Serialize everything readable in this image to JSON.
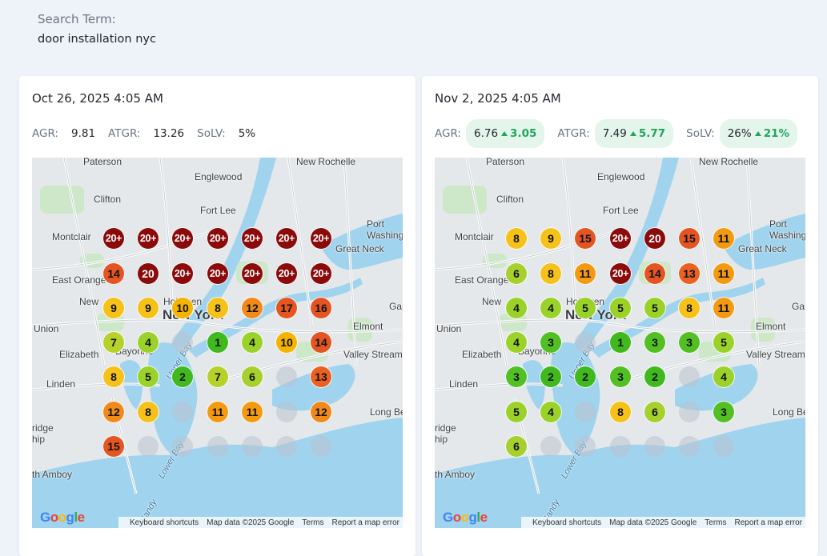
{
  "search": {
    "label": "Search Term:",
    "term": "door installation nyc"
  },
  "colors": {
    "g1": "#3fb91e",
    "g3": "#52c024",
    "g4": "#9ad22a",
    "g6": "#a6d02e",
    "y7": "#b6d12a",
    "y8": "#f6c21a",
    "y10": "#f4b400",
    "o11": "#f49a12",
    "o12": "#f28a1a",
    "o13": "#ec6020",
    "r15": "#e55522",
    "d20": "#8b0a0a"
  },
  "cards": [
    {
      "date": "Oct 26, 2025 4:05 AM",
      "metrics": [
        {
          "label": "AGR:",
          "value": "9.81",
          "change": ""
        },
        {
          "label": "ATGR:",
          "value": "13.26",
          "change": ""
        },
        {
          "label": "SoLV:",
          "value": "5%",
          "change": ""
        }
      ],
      "grid": [
        [
          "20+",
          "20+",
          "20+",
          "20+",
          "20+",
          "20+",
          "20+"
        ],
        [
          "14",
          "20",
          "20+",
          "20+",
          "20+",
          "20+",
          "20+"
        ],
        [
          "9",
          "9",
          "10",
          "8",
          "12",
          "17",
          "16"
        ],
        [
          "7",
          "4",
          "",
          "1",
          "4",
          "10",
          "14"
        ],
        [
          "8",
          "5",
          "2",
          "7",
          "6",
          "",
          "13"
        ],
        [
          "12",
          "8",
          "",
          "11",
          "11",
          "",
          "12"
        ],
        [
          "15",
          "",
          "",
          "",
          "",
          "",
          ""
        ]
      ]
    },
    {
      "date": "Nov 2, 2025 4:05 AM",
      "metrics": [
        {
          "label": "AGR:",
          "value": "6.76",
          "change": "3.05"
        },
        {
          "label": "ATGR:",
          "value": "7.49",
          "change": "5.77"
        },
        {
          "label": "SoLV:",
          "value": "26%",
          "change": "21%"
        }
      ],
      "grid": [
        [
          "8",
          "9",
          "15",
          "20+",
          "20",
          "15",
          "11"
        ],
        [
          "6",
          "8",
          "11",
          "20+",
          "14",
          "13",
          "11"
        ],
        [
          "4",
          "4",
          "5",
          "5",
          "5",
          "8",
          "11"
        ],
        [
          "4",
          "3",
          "",
          "1",
          "3",
          "3",
          "5"
        ],
        [
          "3",
          "2",
          "2",
          "3",
          "2",
          "",
          "4"
        ],
        [
          "5",
          "4",
          "",
          "8",
          "6",
          "",
          "3"
        ],
        [
          "6",
          "",
          "",
          "",
          "",
          "",
          ""
        ]
      ]
    }
  ],
  "map": {
    "labels": {
      "paterson": "Paterson",
      "englewood": "Englewood",
      "new_rochelle": "New Rochelle",
      "clifton": "Clifton",
      "fort_lee": "Fort Lee",
      "port_washington": "Port\nWashington",
      "montclair": "Montclair",
      "great_neck": "Great Neck",
      "east_orange": "East Orange",
      "newark": "New",
      "new_york": "New York",
      "hoboken": "Hoboken",
      "elmont": "Elmont",
      "union": "Union",
      "elizabeth": "Elizabeth",
      "bayonne": "Bayonne",
      "valley_stream": "Valley Stream",
      "linden": "Linden",
      "upper_bay": "Upper Bay",
      "long_beach": "Long Be",
      "woodbridge": "ridge\nhip",
      "lower_bay": "Lower Bay",
      "perth_amboy": "th Amboy",
      "sandy_hook": "Sandy",
      "gar": "Gar",
      "gai": "Gai"
    },
    "footer": {
      "google": "Google",
      "shortcuts": "Keyboard shortcuts",
      "data": "Map data ©2025 Google",
      "terms": "Terms",
      "report": "Report a map error"
    }
  }
}
